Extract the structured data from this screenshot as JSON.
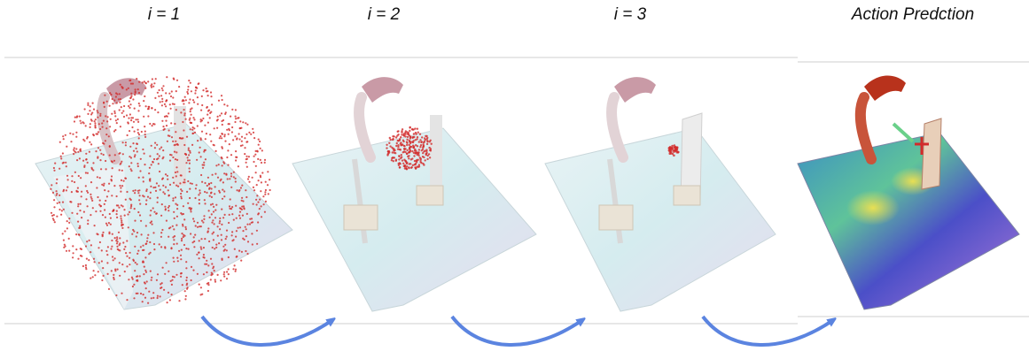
{
  "panels": [
    {
      "label": "i = 1"
    },
    {
      "label": "i = 2"
    },
    {
      "label": "i = 3"
    },
    {
      "label": "Action Predction"
    }
  ],
  "colors": {
    "arrow": "#5b84e0",
    "points": "#d22a2a",
    "floor": "#dcecef",
    "robot": "#c99aa6",
    "robot_final": "#b8321c",
    "heatmap_a": "#4b4fc8",
    "heatmap_b": "#6ad08a",
    "heatmap_c": "#e9d44a"
  }
}
